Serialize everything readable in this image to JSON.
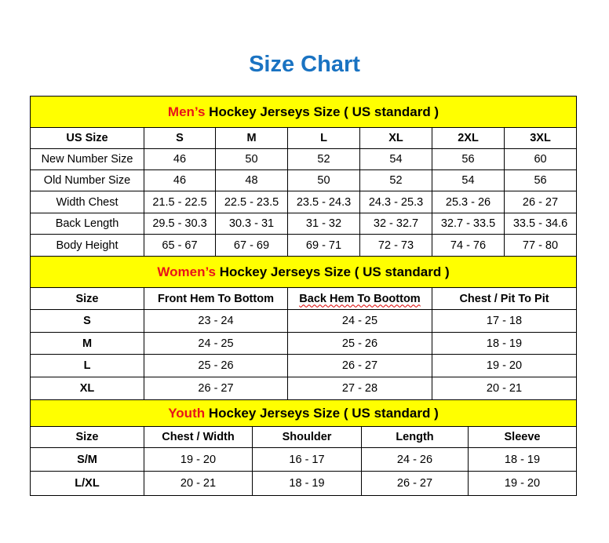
{
  "title": "Size Chart",
  "colors": {
    "title": "#1a73c2",
    "band": "#ffff00",
    "highlight": "#e8141a"
  },
  "men": {
    "band_highlight": "Men’s",
    "band_rest": " Hockey Jerseys Size ( US standard )",
    "headers": [
      "US Size",
      "S",
      "M",
      "L",
      "XL",
      "2XL",
      "3XL"
    ],
    "rows": [
      [
        "New Number Size",
        "46",
        "50",
        "52",
        "54",
        "56",
        "60"
      ],
      [
        "Old Number Size",
        "46",
        "48",
        "50",
        "52",
        "54",
        "56"
      ],
      [
        "Width Chest",
        "21.5 - 22.5",
        "22.5 - 23.5",
        "23.5 - 24.3",
        "24.3 - 25.3",
        "25.3 - 26",
        "26 - 27"
      ],
      [
        "Back Length",
        "29.5 - 30.3",
        "30.3 - 31",
        "31 - 32",
        "32 - 32.7",
        "32.7 - 33.5",
        "33.5 - 34.6"
      ],
      [
        "Body Height",
        "65 - 67",
        "67 - 69",
        "69 - 71",
        "72 - 73",
        "74 - 76",
        "77 - 80"
      ]
    ]
  },
  "women": {
    "band_highlight": "Women’s",
    "band_rest": " Hockey Jerseys Size ( US standard )",
    "headers": [
      "Size",
      "Front Hem To Bottom",
      "Back Hem To Boottom",
      "Chest / Pit To Pit"
    ],
    "rows": [
      [
        "S",
        "23 - 24",
        "24 - 25",
        "17 - 18"
      ],
      [
        "M",
        "24 - 25",
        "25 - 26",
        "18 - 19"
      ],
      [
        "L",
        "25 - 26",
        "26 - 27",
        "19 - 20"
      ],
      [
        "XL",
        "26 - 27",
        "27 - 28",
        "20 - 21"
      ]
    ]
  },
  "youth": {
    "band_highlight": "Youth",
    "band_rest": " Hockey Jerseys Size ( US standard )",
    "headers": [
      "Size",
      "Chest / Width",
      "Shoulder",
      "Length",
      "Sleeve"
    ],
    "rows": [
      [
        "S/M",
        "19 - 20",
        "16 - 17",
        "24 - 26",
        "18 - 19"
      ],
      [
        "L/XL",
        "20 - 21",
        "18 - 19",
        "26 - 27",
        "19 - 20"
      ]
    ]
  }
}
